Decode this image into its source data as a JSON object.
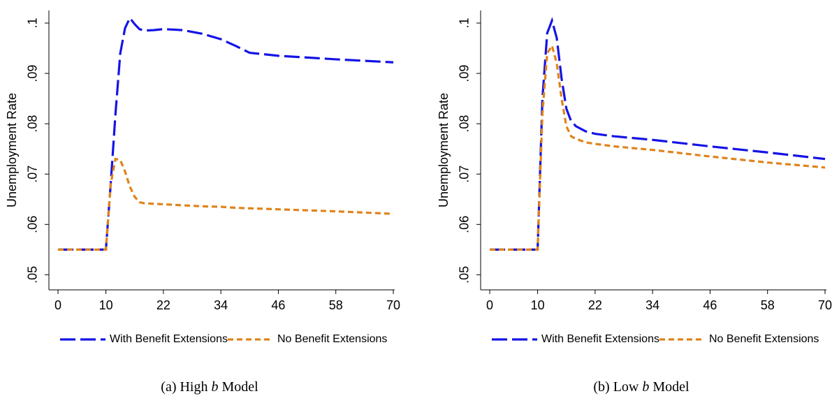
{
  "chart_data": [
    {
      "type": "line",
      "y_label": "Unemployment Rate",
      "caption": [
        "(a) High",
        "b",
        "Model"
      ],
      "x": [
        0,
        10,
        11,
        12,
        13,
        14,
        15,
        16,
        17,
        18,
        20,
        22,
        26,
        30,
        34,
        37,
        40,
        46,
        58,
        70
      ],
      "series": [
        {
          "name": "With Benefit Extensions",
          "color": "#1414e6",
          "dash": "long",
          "values": [
            0.055,
            0.055,
            0.068,
            0.082,
            0.094,
            0.099,
            0.101,
            0.0998,
            0.0988,
            0.0985,
            0.0986,
            0.0988,
            0.0986,
            0.0979,
            0.0968,
            0.0955,
            0.0941,
            0.0935,
            0.0928,
            0.0922
          ]
        },
        {
          "name": "No Benefit Extensions",
          "color": "#e0831a",
          "dash": "short",
          "values": [
            0.055,
            0.055,
            0.068,
            0.073,
            0.0728,
            0.0705,
            0.0675,
            0.0655,
            0.0644,
            0.0642,
            0.0641,
            0.064,
            0.0638,
            0.0636,
            0.0635,
            0.0633,
            0.0632,
            0.063,
            0.0626,
            0.0621
          ]
        }
      ],
      "xlim": [
        -1.9,
        70
      ],
      "xticks": [
        0,
        10,
        22,
        34,
        46,
        58,
        70
      ],
      "ylim": [
        0.047,
        0.1025
      ],
      "yticks": [
        {
          "value": 0.05,
          "label": ".05"
        },
        {
          "value": 0.06,
          "label": ".06"
        },
        {
          "value": 0.07,
          "label": ".07"
        },
        {
          "value": 0.08,
          "label": ".08"
        },
        {
          "value": 0.09,
          "label": ".09"
        },
        {
          "value": 0.1,
          "label": ".1"
        }
      ]
    },
    {
      "type": "line",
      "y_label": "Unemployment Rate",
      "caption": [
        "(b) Low",
        "b",
        "Model"
      ],
      "x": [
        0,
        10,
        11,
        12,
        13,
        14,
        15,
        16,
        17,
        18,
        20,
        22,
        26,
        34,
        46,
        58,
        70
      ],
      "series": [
        {
          "name": "With Benefit Extensions",
          "color": "#1414e6",
          "dash": "long",
          "values": [
            0.055,
            0.055,
            0.085,
            0.098,
            0.1005,
            0.097,
            0.089,
            0.083,
            0.0805,
            0.0795,
            0.0785,
            0.078,
            0.0775,
            0.0768,
            0.0755,
            0.0743,
            0.073
          ]
        },
        {
          "name": "No Benefit Extensions",
          "color": "#e0831a",
          "dash": "short",
          "values": [
            0.055,
            0.055,
            0.082,
            0.094,
            0.0955,
            0.092,
            0.085,
            0.0795,
            0.0775,
            0.077,
            0.0763,
            0.076,
            0.0755,
            0.0748,
            0.0735,
            0.0723,
            0.0713
          ]
        }
      ],
      "xlim": [
        -1.9,
        70
      ],
      "xticks": [
        0,
        10,
        22,
        34,
        46,
        58,
        70
      ],
      "ylim": [
        0.047,
        0.1025
      ],
      "yticks": [
        {
          "value": 0.05,
          "label": ".05"
        },
        {
          "value": 0.06,
          "label": ".06"
        },
        {
          "value": 0.07,
          "label": ".07"
        },
        {
          "value": 0.08,
          "label": ".08"
        },
        {
          "value": 0.09,
          "label": ".09"
        },
        {
          "value": 0.1,
          "label": ".1"
        }
      ]
    }
  ]
}
